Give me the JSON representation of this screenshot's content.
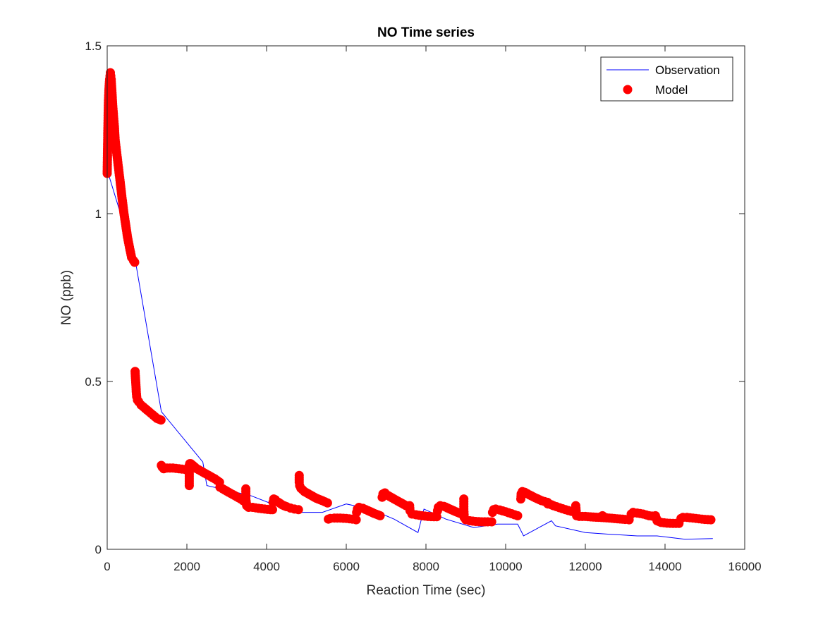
{
  "chart_data": {
    "type": "line",
    "title": "NO Time series",
    "xlabel": "Reaction Time (sec)",
    "ylabel": "NO (ppb)",
    "xlim": [
      0,
      16000
    ],
    "ylim": [
      0,
      1.5
    ],
    "xticks": [
      0,
      2000,
      4000,
      6000,
      8000,
      10000,
      12000,
      14000,
      16000
    ],
    "yticks": [
      0,
      0.5,
      1,
      1.5
    ],
    "xtick_labels": [
      "0",
      "2000",
      "4000",
      "6000",
      "8000",
      "10000",
      "12000",
      "14000",
      "16000"
    ],
    "ytick_labels": [
      "0",
      "0.5",
      "1",
      "1.5"
    ],
    "grid": false,
    "legend_position": "top-right",
    "series": [
      {
        "name": "Observation",
        "style": "line",
        "color": "#0000ff",
        "x": [
          0,
          720,
          1360,
          2400,
          2500,
          3600,
          4250,
          4800,
          5400,
          6000,
          6600,
          7200,
          7800,
          7950,
          8500,
          9200,
          9800,
          10300,
          10450,
          11150,
          11250,
          12000,
          12600,
          13300,
          13800,
          14500,
          15200
        ],
        "y": [
          1.13,
          0.85,
          0.41,
          0.26,
          0.19,
          0.16,
          0.13,
          0.11,
          0.11,
          0.135,
          0.12,
          0.09,
          0.05,
          0.12,
          0.09,
          0.065,
          0.075,
          0.075,
          0.04,
          0.085,
          0.07,
          0.05,
          0.045,
          0.04,
          0.04,
          0.03,
          0.032
        ]
      },
      {
        "name": "Model",
        "style": "markers",
        "color": "#ff0000",
        "segments": [
          {
            "x": [
              0,
              5,
              10,
              15,
              20,
              25,
              30,
              40,
              50,
              60,
              70,
              80,
              90,
              100,
              110,
              120,
              140,
              160,
              180,
              200,
              230,
              260,
              290,
              320,
              360,
              410,
              460,
              510,
              560,
              610,
              660,
              690
            ],
            "y": [
              1.12,
              1.16,
              1.2,
              1.24,
              1.27,
              1.3,
              1.33,
              1.36,
              1.38,
              1.4,
              1.41,
              1.42,
              1.41,
              1.4,
              1.38,
              1.36,
              1.32,
              1.29,
              1.26,
              1.22,
              1.19,
              1.16,
              1.13,
              1.1,
              1.06,
              1.01,
              0.97,
              0.93,
              0.9,
              0.87,
              0.86,
              0.855
            ]
          },
          {
            "x": [
              700,
              710,
              720,
              730,
              740,
              760,
              790,
              850,
              950,
              1050,
              1150,
              1250,
              1350
            ],
            "y": [
              0.53,
              0.51,
              0.49,
              0.47,
              0.455,
              0.445,
              0.44,
              0.43,
              0.42,
              0.41,
              0.4,
              0.39,
              0.385
            ]
          },
          {
            "x": [
              1360,
              1380,
              1420,
              1500,
              1650,
              1800,
              1950,
              2050
            ],
            "y": [
              0.25,
              0.245,
              0.24,
              0.242,
              0.242,
              0.24,
              0.238,
              0.235
            ]
          },
          {
            "x": [
              2060,
              2060,
              2060,
              2060,
              2070,
              2100,
              2150,
              2250,
              2400,
              2550,
              2700,
              2820
            ],
            "y": [
              0.19,
              0.21,
              0.23,
              0.25,
              0.255,
              0.255,
              0.25,
              0.24,
              0.23,
              0.22,
              0.21,
              0.2
            ]
          },
          {
            "x": [
              2830,
              2900,
              3050,
              3200,
              3350,
              3470
            ],
            "y": [
              0.185,
              0.18,
              0.17,
              0.16,
              0.15,
              0.14
            ]
          },
          {
            "x": [
              3480,
              3480,
              3500,
              3550,
              3650,
              3800,
              3950,
              4100,
              4150
            ],
            "y": [
              0.18,
              0.15,
              0.13,
              0.125,
              0.125,
              0.122,
              0.12,
              0.118,
              0.118
            ]
          },
          {
            "x": [
              4160,
              4180,
              4220,
              4300,
              4400,
              4500,
              4600,
              4700,
              4800
            ],
            "y": [
              0.14,
              0.15,
              0.148,
              0.14,
              0.132,
              0.127,
              0.123,
              0.12,
              0.118
            ]
          },
          {
            "x": [
              4820,
              4820,
              4830,
              4860,
              4950,
              5100,
              5250,
              5400,
              5530
            ],
            "y": [
              0.22,
              0.2,
              0.19,
              0.182,
              0.172,
              0.162,
              0.152,
              0.145,
              0.138
            ]
          },
          {
            "x": [
              5550,
              5600,
              5700,
              5850,
              6000,
              6150,
              6250
            ],
            "y": [
              0.09,
              0.092,
              0.093,
              0.093,
              0.092,
              0.09,
              0.088
            ]
          },
          {
            "x": [
              6260,
              6280,
              6320,
              6420,
              6550,
              6700,
              6850
            ],
            "y": [
              0.11,
              0.12,
              0.125,
              0.122,
              0.115,
              0.107,
              0.1
            ]
          },
          {
            "x": [
              6900,
              6920,
              6970,
              7050,
              7200,
              7350,
              7500,
              7580
            ],
            "y": [
              0.155,
              0.165,
              0.168,
              0.16,
              0.15,
              0.14,
              0.13,
              0.125
            ]
          },
          {
            "x": [
              7590,
              7600,
              7650,
              7750,
              7900,
              8050,
              8200,
              8270
            ],
            "y": [
              0.13,
              0.115,
              0.105,
              0.103,
              0.1,
              0.098,
              0.097,
              0.097
            ]
          },
          {
            "x": [
              8290,
              8310,
              8360,
              8450,
              8600,
              8750,
              8900
            ],
            "y": [
              0.115,
              0.125,
              0.13,
              0.128,
              0.12,
              0.112,
              0.105
            ]
          },
          {
            "x": [
              8950,
              8950,
              8960,
              9000,
              9100,
              9250,
              9400,
              9550,
              9650
            ],
            "y": [
              0.15,
              0.12,
              0.095,
              0.088,
              0.085,
              0.083,
              0.082,
              0.082,
              0.082
            ]
          },
          {
            "x": [
              9670,
              9700,
              9750,
              9850,
              10000,
              10150,
              10300
            ],
            "y": [
              0.11,
              0.118,
              0.12,
              0.117,
              0.112,
              0.106,
              0.1
            ]
          },
          {
            "x": [
              10380,
              10390,
              10420,
              10480,
              10600,
              10750,
              10900,
              11050
            ],
            "y": [
              0.15,
              0.165,
              0.172,
              0.17,
              0.162,
              0.153,
              0.145,
              0.14
            ]
          },
          {
            "x": [
              11060,
              11100,
              11200,
              11350,
              11500,
              11650,
              11750
            ],
            "y": [
              0.135,
              0.135,
              0.13,
              0.124,
              0.118,
              0.113,
              0.11
            ]
          },
          {
            "x": [
              11760,
              11780,
              11850,
              12000,
              12200,
              12400,
              12600,
              12800,
              13000,
              13100
            ],
            "y": [
              0.13,
              0.1,
              0.098,
              0.098,
              0.096,
              0.095,
              0.093,
              0.091,
              0.089,
              0.088
            ]
          },
          {
            "x": [
              12400,
              12430,
              12470
            ],
            "y": [
              0.095,
              0.1,
              0.096
            ]
          },
          {
            "x": [
              13150,
              13200,
              13300,
              13450,
              13600,
              13750
            ],
            "y": [
              0.105,
              0.11,
              0.108,
              0.105,
              0.1,
              0.098
            ]
          },
          {
            "x": [
              13760,
              13800,
              13900,
              14050,
              14200,
              14350
            ],
            "y": [
              0.1,
              0.085,
              0.08,
              0.078,
              0.077,
              0.077
            ]
          },
          {
            "x": [
              14400,
              14450,
              14550,
              14700,
              14850,
              15000,
              15150
            ],
            "y": [
              0.092,
              0.095,
              0.095,
              0.093,
              0.091,
              0.089,
              0.088
            ]
          }
        ]
      }
    ],
    "legend": [
      "Observation",
      "Model"
    ]
  }
}
